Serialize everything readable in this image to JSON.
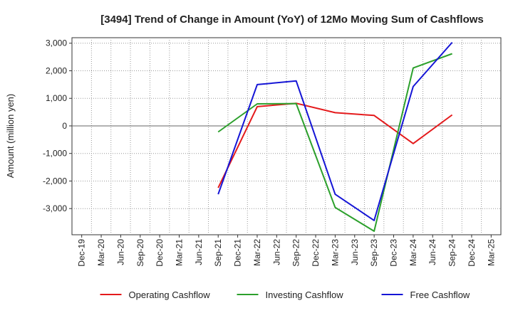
{
  "chart_data": {
    "type": "line",
    "title": "[3494]  Trend of Change in Amount (YoY) of 12Mo Moving Sum of Cashflows",
    "xlabel": "",
    "ylabel": "Amount (million yen)",
    "categories": [
      "Dec-19",
      "Mar-20",
      "Jun-20",
      "Sep-20",
      "Dec-20",
      "Mar-21",
      "Jun-21",
      "Sep-21",
      "Dec-21",
      "Mar-22",
      "Jun-22",
      "Sep-22",
      "Dec-22",
      "Mar-23",
      "Jun-23",
      "Sep-23",
      "Dec-23",
      "Mar-24",
      "Jun-24",
      "Sep-24",
      "Dec-24",
      "Mar-25"
    ],
    "x_tick_labels": [
      "Dec-19",
      "Mar-20",
      "Jun-20",
      "Sep-20",
      "Dec-20",
      "Mar-21",
      "Jun-21",
      "Sep-21",
      "Dec-21",
      "Mar-22",
      "Jun-22",
      "Sep-22",
      "Dec-22",
      "Mar-23",
      "Jun-23",
      "Sep-23",
      "Dec-23",
      "Mar-24",
      "Jun-24",
      "Sep-24",
      "Dec-24",
      "Mar-25"
    ],
    "y_ticks": [
      3000,
      2000,
      1000,
      0,
      -1000,
      -2000,
      -3000
    ],
    "y_tick_labels": [
      "3,000",
      "2,000",
      "1,000",
      "0",
      "-1,000",
      "-2,000",
      "-3,000"
    ],
    "ylim": [
      -3950,
      3200
    ],
    "grid": true,
    "legend_position": "bottom",
    "series": [
      {
        "name": "Operating Cashflow",
        "color": "#e41a1c",
        "points": [
          {
            "x": "Sep-21",
            "y": -2250
          },
          {
            "x": "Mar-22",
            "y": 700
          },
          {
            "x": "Sep-22",
            "y": 820
          },
          {
            "x": "Mar-23",
            "y": 480
          },
          {
            "x": "Sep-23",
            "y": 380
          },
          {
            "x": "Mar-24",
            "y": -640
          },
          {
            "x": "Sep-24",
            "y": 400
          }
        ]
      },
      {
        "name": "Investing Cashflow",
        "color": "#2ca02c",
        "points": [
          {
            "x": "Sep-21",
            "y": -220
          },
          {
            "x": "Mar-22",
            "y": 800
          },
          {
            "x": "Sep-22",
            "y": 810
          },
          {
            "x": "Mar-23",
            "y": -2960
          },
          {
            "x": "Sep-23",
            "y": -3820
          },
          {
            "x": "Mar-24",
            "y": 2100
          },
          {
            "x": "Sep-24",
            "y": 2620
          }
        ]
      },
      {
        "name": "Free Cashflow",
        "color": "#1515d6",
        "points": [
          {
            "x": "Sep-21",
            "y": -2480
          },
          {
            "x": "Mar-22",
            "y": 1500
          },
          {
            "x": "Sep-22",
            "y": 1630
          },
          {
            "x": "Mar-23",
            "y": -2480
          },
          {
            "x": "Sep-23",
            "y": -3430
          },
          {
            "x": "Mar-24",
            "y": 1430
          },
          {
            "x": "Sep-24",
            "y": 3030
          }
        ]
      }
    ]
  }
}
